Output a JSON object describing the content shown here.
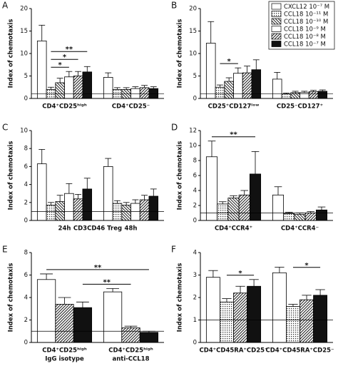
{
  "chart_data": [
    {
      "type": "bar",
      "panel_label": "A",
      "ylabel": "Index of chemotaxis",
      "categories": [
        "CD4⁺CD25ʰⁱᵍʰ",
        "CD4⁺CD25⁻"
      ],
      "ylim": [
        0,
        20
      ],
      "yticks": [
        0,
        5,
        10,
        15,
        20
      ],
      "reference_line": 1,
      "series": [
        {
          "fill": "white",
          "values": [
            12.8,
            4.7
          ],
          "errors": [
            3.5,
            1.0
          ]
        },
        {
          "fill": "dots",
          "values": [
            2.0,
            2.0
          ],
          "errors": [
            0.5,
            0.4
          ]
        },
        {
          "fill": "hatch-back",
          "values": [
            3.5,
            2.0
          ],
          "errors": [
            1.0,
            0.4
          ]
        },
        {
          "fill": "white",
          "values": [
            4.8,
            2.2
          ],
          "errors": [
            1.2,
            0.4
          ]
        },
        {
          "fill": "hatch-fwd",
          "values": [
            5.0,
            2.4
          ],
          "errors": [
            1.0,
            0.5
          ]
        },
        {
          "fill": "black",
          "values": [
            5.9,
            2.2
          ],
          "errors": [
            1.2,
            0.4
          ]
        }
      ],
      "annotations": [
        {
          "label": "*",
          "from": [
            0,
            1
          ],
          "to": [
            0,
            3
          ]
        },
        {
          "label": "*",
          "from": [
            0,
            1
          ],
          "to": [
            0,
            4
          ]
        },
        {
          "label": "**",
          "from": [
            0,
            1
          ],
          "to": [
            0,
            5
          ]
        }
      ]
    },
    {
      "type": "bar",
      "panel_label": "B",
      "ylabel": "Index of chemotaxis",
      "categories": [
        "CD25⁺CD127ˡᵒʷ",
        "CD25⁻CD127⁺"
      ],
      "ylim": [
        0,
        20
      ],
      "yticks": [
        0,
        5,
        10,
        15,
        20
      ],
      "reference_line": 1,
      "legend": "upper right",
      "series": [
        {
          "name": "CXCL12 10⁻⁷ M",
          "fill": "white",
          "values": [
            12.3,
            4.3
          ],
          "errors": [
            4.8,
            1.5
          ]
        },
        {
          "name": "CCL18 10⁻¹¹ M",
          "fill": "dots",
          "values": [
            2.5,
            1.0
          ],
          "errors": [
            0.5,
            0.2
          ]
        },
        {
          "name": "CCL18 10⁻¹⁰ M",
          "fill": "hatch-back",
          "values": [
            3.8,
            1.3
          ],
          "errors": [
            0.8,
            0.3
          ]
        },
        {
          "name": "CCL18 10⁻⁹ M",
          "fill": "white",
          "values": [
            5.6,
            1.3
          ],
          "errors": [
            1.2,
            0.3
          ]
        },
        {
          "name": "CCL18 10⁻⁸ M",
          "fill": "hatch-fwd",
          "values": [
            5.7,
            1.5
          ],
          "errors": [
            1.5,
            0.3
          ]
        },
        {
          "name": "CCL18 10⁻⁷ M",
          "fill": "black",
          "values": [
            6.4,
            1.6
          ],
          "errors": [
            2.2,
            0.3
          ]
        }
      ],
      "annotations": [
        {
          "label": "*",
          "from": [
            0,
            1
          ],
          "to": [
            0,
            3
          ]
        }
      ]
    },
    {
      "type": "bar",
      "panel_label": "C",
      "ylabel": "Index of chemotaxis",
      "xlabel": "CD3CD46 Treg",
      "categories": [
        "24h",
        "48h"
      ],
      "ylim": [
        0,
        10
      ],
      "yticks": [
        0,
        2,
        4,
        6,
        8,
        10
      ],
      "reference_line": 1,
      "series": [
        {
          "fill": "white",
          "values": [
            6.3,
            6.0
          ],
          "errors": [
            1.6,
            0.9
          ]
        },
        {
          "fill": "dots",
          "values": [
            1.7,
            1.9
          ],
          "errors": [
            0.3,
            0.3
          ]
        },
        {
          "fill": "hatch-back",
          "values": [
            2.1,
            1.7
          ],
          "errors": [
            0.7,
            0.3
          ]
        },
        {
          "fill": "white",
          "values": [
            3.0,
            1.9
          ],
          "errors": [
            1.1,
            0.4
          ]
        },
        {
          "fill": "hatch-fwd",
          "values": [
            2.4,
            2.3
          ],
          "errors": [
            0.5,
            0.5
          ]
        },
        {
          "fill": "black",
          "values": [
            3.5,
            2.7
          ],
          "errors": [
            1.2,
            0.8
          ]
        }
      ],
      "annotations": []
    },
    {
      "type": "bar",
      "panel_label": "D",
      "ylabel": "Index of chemotaxis",
      "categories": [
        "CD4⁺CCR4⁺",
        "CD4⁺CCR4⁻"
      ],
      "ylim": [
        0,
        12
      ],
      "yticks": [
        0,
        2,
        4,
        6,
        8,
        10,
        12
      ],
      "reference_line": 1,
      "series": [
        {
          "fill": "white",
          "values": [
            8.5,
            3.4
          ],
          "errors": [
            2.1,
            1.1
          ]
        },
        {
          "fill": "dots",
          "values": [
            2.2,
            0.9
          ],
          "errors": [
            0.3,
            0.2
          ]
        },
        {
          "fill": "hatch-back",
          "values": [
            3.0,
            0.8
          ],
          "errors": [
            0.3,
            0.2
          ]
        },
        {
          "fill": "hatch-fwd",
          "values": [
            3.4,
            1.0
          ],
          "errors": [
            0.6,
            0.2
          ]
        },
        {
          "fill": "black",
          "values": [
            6.2,
            1.4
          ],
          "errors": [
            3.0,
            0.4
          ]
        }
      ],
      "annotations": [
        {
          "label": "**",
          "from": [
            0,
            0
          ],
          "to": [
            0,
            4
          ]
        }
      ]
    },
    {
      "type": "bar",
      "panel_label": "E",
      "ylabel": "Index of chemotaxis",
      "categories": [
        "CD4⁺CD25ʰⁱᵍʰ",
        "CD4⁺CD25ʰⁱᵍʰ"
      ],
      "category_sublabels": [
        "IgG isotype",
        "anti-CCL18"
      ],
      "ylim": [
        0,
        8
      ],
      "yticks": [
        0,
        2,
        4,
        6,
        8
      ],
      "reference_line": 1,
      "series": [
        {
          "fill": "white",
          "values": [
            5.6,
            4.5
          ],
          "errors": [
            0.5,
            0.3
          ]
        },
        {
          "fill": "hatch-fwd",
          "values": [
            3.4,
            1.3
          ],
          "errors": [
            0.6,
            0.15
          ]
        },
        {
          "fill": "black",
          "values": [
            3.1,
            0.9
          ],
          "errors": [
            0.5,
            0.1
          ]
        }
      ],
      "annotations": [
        {
          "label": "**",
          "from": [
            0,
            2
          ],
          "to": [
            1,
            1
          ]
        },
        {
          "label": "**",
          "from": [
            0,
            0
          ],
          "to": [
            1,
            2
          ]
        }
      ]
    },
    {
      "type": "bar",
      "panel_label": "F",
      "ylabel": "Index of chemotaxis",
      "categories": [
        "CD4⁺CD45RA⁺CD25⁺",
        "CD4⁺CD45RA⁺CD25⁻"
      ],
      "ylim": [
        0,
        4
      ],
      "yticks": [
        0,
        1,
        2,
        3,
        4
      ],
      "reference_line": 1,
      "series": [
        {
          "fill": "white",
          "values": [
            2.9,
            3.1
          ],
          "errors": [
            0.3,
            0.25
          ]
        },
        {
          "fill": "dots",
          "values": [
            1.8,
            1.6
          ],
          "errors": [
            0.15,
            0.1
          ]
        },
        {
          "fill": "hatch-fwd",
          "values": [
            2.2,
            1.9
          ],
          "errors": [
            0.3,
            0.2
          ]
        },
        {
          "fill": "black",
          "values": [
            2.5,
            2.1
          ],
          "errors": [
            0.3,
            0.25
          ]
        }
      ],
      "annotations": [
        {
          "label": "*",
          "from": [
            0,
            1
          ],
          "to": [
            0,
            3
          ]
        },
        {
          "label": "*",
          "from": [
            1,
            1
          ],
          "to": [
            1,
            3
          ]
        }
      ]
    }
  ]
}
